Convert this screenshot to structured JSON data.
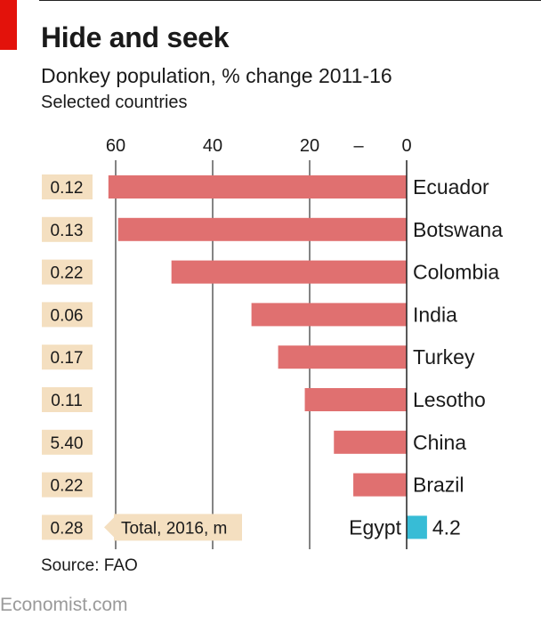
{
  "header": {
    "title": "Hide and seek",
    "subtitle": "Donkey population, % change 2011-16",
    "note": "Selected countries"
  },
  "footer": {
    "source": "Source: FAO",
    "brand": "Economist.com"
  },
  "chart_data": {
    "type": "bar",
    "orientation": "horizontal",
    "x_axis_reversed": true,
    "xlim": [
      -72,
      5
    ],
    "x_ticks": [
      60,
      40,
      20,
      0
    ],
    "x_tick_labels": [
      "60",
      "40",
      "20",
      "–",
      "0"
    ],
    "grid": true,
    "categories": [
      "Ecuador",
      "Botswana",
      "Colombia",
      "India",
      "Turkey",
      "Lesotho",
      "China",
      "Brazil",
      "Egypt"
    ],
    "series": [
      {
        "values": [
          -61.5,
          -59.5,
          -48.5,
          -32,
          -26.5,
          -21,
          -15,
          -11,
          4.2
        ]
      }
    ],
    "totals_legend": "Total, 2016, m",
    "totals": [
      "0.12",
      "0.13",
      "0.22",
      "0.06",
      "0.17",
      "0.11",
      "5.40",
      "0.22",
      "0.28"
    ],
    "annotations": [
      {
        "category": "Egypt",
        "text": "4.2"
      }
    ],
    "colors": {
      "decline": "#e07070",
      "increase": "#37bcd6",
      "total_box": "#f4dfc0",
      "grid": "#333333"
    }
  }
}
